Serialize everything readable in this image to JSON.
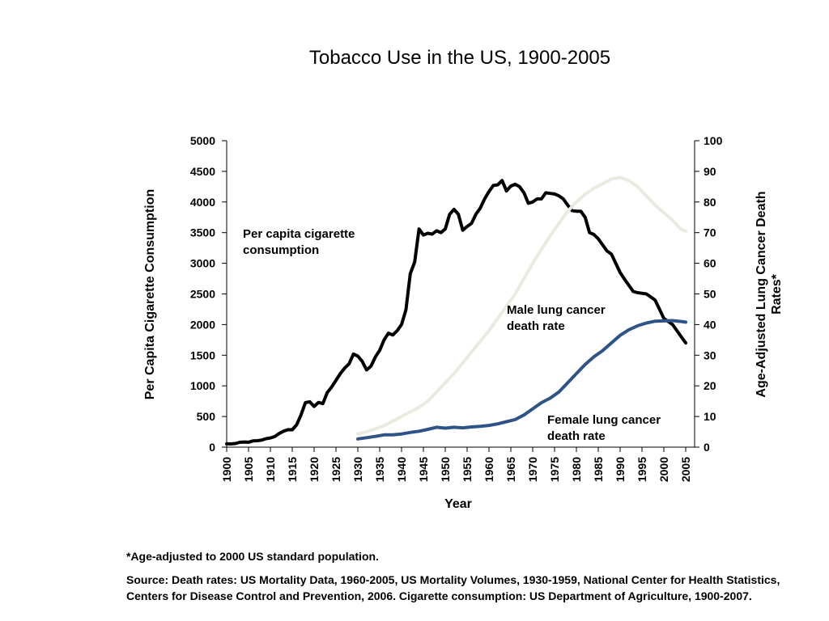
{
  "chart_data": {
    "type": "line",
    "title": "Tobacco Use in the US, 1900-2005",
    "xlabel": "Year",
    "ylabel_left": "Per Capita Cigarette Consumption",
    "ylabel_right": "Age-Adjusted Lung Cancer Death Rates*",
    "xlim": [
      1900,
      2005
    ],
    "ylim_left": [
      0,
      5000
    ],
    "ylim_right": [
      0,
      100
    ],
    "x_ticks": [
      "1900",
      "1905",
      "1910",
      "1915",
      "1920",
      "1925",
      "1930",
      "1935",
      "1940",
      "1945",
      "1950",
      "1955",
      "1960",
      "1965",
      "1970",
      "1975",
      "1980",
      "1985",
      "1990",
      "1995",
      "2000",
      "2005"
    ],
    "y_left_ticks": [
      "0",
      "500",
      "1000",
      "1500",
      "2000",
      "2500",
      "3000",
      "3500",
      "4000",
      "4500",
      "5000"
    ],
    "y_right_ticks": [
      "0",
      "10",
      "20",
      "30",
      "40",
      "50",
      "60",
      "70",
      "80",
      "90",
      "100"
    ],
    "grid": false,
    "series": [
      {
        "name": "Per capita cigarette consumption",
        "axis": "left",
        "color": "#000000",
        "x": [
          1900,
          1901,
          1902,
          1903,
          1904,
          1905,
          1906,
          1907,
          1908,
          1909,
          1910,
          1911,
          1912,
          1913,
          1914,
          1915,
          1916,
          1917,
          1918,
          1919,
          1920,
          1921,
          1922,
          1923,
          1924,
          1925,
          1926,
          1927,
          1928,
          1929,
          1930,
          1931,
          1932,
          1933,
          1934,
          1935,
          1936,
          1937,
          1938,
          1939,
          1940,
          1941,
          1942,
          1943,
          1944,
          1945,
          1946,
          1947,
          1948,
          1949,
          1950,
          1951,
          1952,
          1953,
          1954,
          1955,
          1956,
          1957,
          1958,
          1959,
          1960,
          1961,
          1962,
          1963,
          1964,
          1965,
          1966,
          1967,
          1968,
          1969,
          1970,
          1971,
          1972,
          1973,
          1974,
          1975,
          1976,
          1977,
          1978,
          1979,
          1980,
          1981,
          1982,
          1983,
          1984,
          1985,
          1986,
          1987,
          1988,
          1989,
          1990,
          1991,
          1992,
          1993,
          1994,
          1995,
          1996,
          1997,
          1998,
          1999,
          2000,
          2001,
          2002,
          2003,
          2004,
          2005
        ],
        "values": [
          54,
          53,
          60,
          79,
          85,
          80,
          102,
          106,
          115,
          138,
          151,
          173,
          223,
          260,
          285,
          284,
          365,
          525,
          725,
          740,
          665,
          730,
          710,
          890,
          980,
          1090,
          1200,
          1290,
          1360,
          1520,
          1485,
          1400,
          1260,
          1320,
          1470,
          1580,
          1750,
          1860,
          1830,
          1900,
          2000,
          2240,
          2830,
          3020,
          3560,
          3460,
          3490,
          3475,
          3530,
          3500,
          3560,
          3800,
          3880,
          3800,
          3540,
          3600,
          3650,
          3800,
          3900,
          4050,
          4170,
          4270,
          4280,
          4350,
          4180,
          4260,
          4290,
          4250,
          4150,
          3980,
          4000,
          4050,
          4050,
          4150,
          4140,
          4130,
          4100,
          4050,
          3950,
          3860,
          3850,
          3850,
          3750,
          3500,
          3470,
          3400,
          3300,
          3200,
          3150,
          3000,
          2850,
          2740,
          2640,
          2540,
          2520,
          2510,
          2500,
          2450,
          2400,
          2250,
          2100,
          2050,
          2000,
          1900,
          1800,
          1700
        ]
      },
      {
        "name": "Male lung cancer death rate",
        "axis": "right",
        "color": "#ebeae0",
        "x": [
          1930,
          1932,
          1934,
          1936,
          1938,
          1940,
          1942,
          1944,
          1946,
          1948,
          1950,
          1952,
          1954,
          1956,
          1958,
          1960,
          1962,
          1964,
          1966,
          1968,
          1970,
          1972,
          1974,
          1976,
          1978,
          1980,
          1982,
          1984,
          1986,
          1988,
          1990,
          1992,
          1994,
          1996,
          1998,
          2000,
          2002,
          2004,
          2005
        ],
        "values": [
          4.3,
          5,
          6,
          7,
          8.5,
          10,
          11.5,
          13,
          15,
          18,
          21,
          24,
          27.5,
          31,
          34.5,
          38,
          42,
          46,
          50,
          55,
          60,
          64.5,
          69,
          73,
          77,
          80,
          82.5,
          84.5,
          86,
          87.5,
          88,
          87,
          85,
          82,
          79,
          76.5,
          74,
          71,
          70.5
        ]
      },
      {
        "name": "Female lung cancer death rate",
        "axis": "right",
        "color": "#2e5386",
        "x": [
          1930,
          1932,
          1934,
          1936,
          1938,
          1940,
          1942,
          1944,
          1946,
          1948,
          1950,
          1952,
          1954,
          1956,
          1958,
          1960,
          1962,
          1964,
          1966,
          1968,
          1970,
          1972,
          1974,
          1976,
          1978,
          1980,
          1982,
          1984,
          1986,
          1988,
          1990,
          1992,
          1994,
          1996,
          1998,
          2000,
          2002,
          2004,
          2005
        ],
        "values": [
          2.7,
          3.1,
          3.5,
          4,
          4,
          4.3,
          4.8,
          5.2,
          5.8,
          6.5,
          6.2,
          6.5,
          6.3,
          6.6,
          6.8,
          7.1,
          7.6,
          8.3,
          9,
          10.5,
          12.5,
          14.5,
          16,
          18,
          21,
          24,
          27,
          29.5,
          31.5,
          34,
          36.5,
          38.3,
          39.6,
          40.5,
          41.1,
          41.2,
          41.3,
          41,
          40.8
        ]
      }
    ],
    "annotations": [
      {
        "series": "consumption",
        "lines": [
          "Per capita cigarette",
          "consumption"
        ]
      },
      {
        "series": "male",
        "lines": [
          "Male lung cancer",
          "death rate"
        ]
      },
      {
        "series": "female",
        "lines": [
          "Female lung cancer",
          "death rate"
        ]
      }
    ]
  },
  "footnotes": {
    "asterisk": "*Age-adjusted to 2000 US standard population.",
    "source": "Source: Death rates: US Mortality Data, 1960-2005, US Mortality Volumes, 1930-1959, National Center for Health Statistics, Centers for Disease Control and Prevention, 2006. Cigarette consumption: US Department of Agriculture, 1900-2007."
  }
}
